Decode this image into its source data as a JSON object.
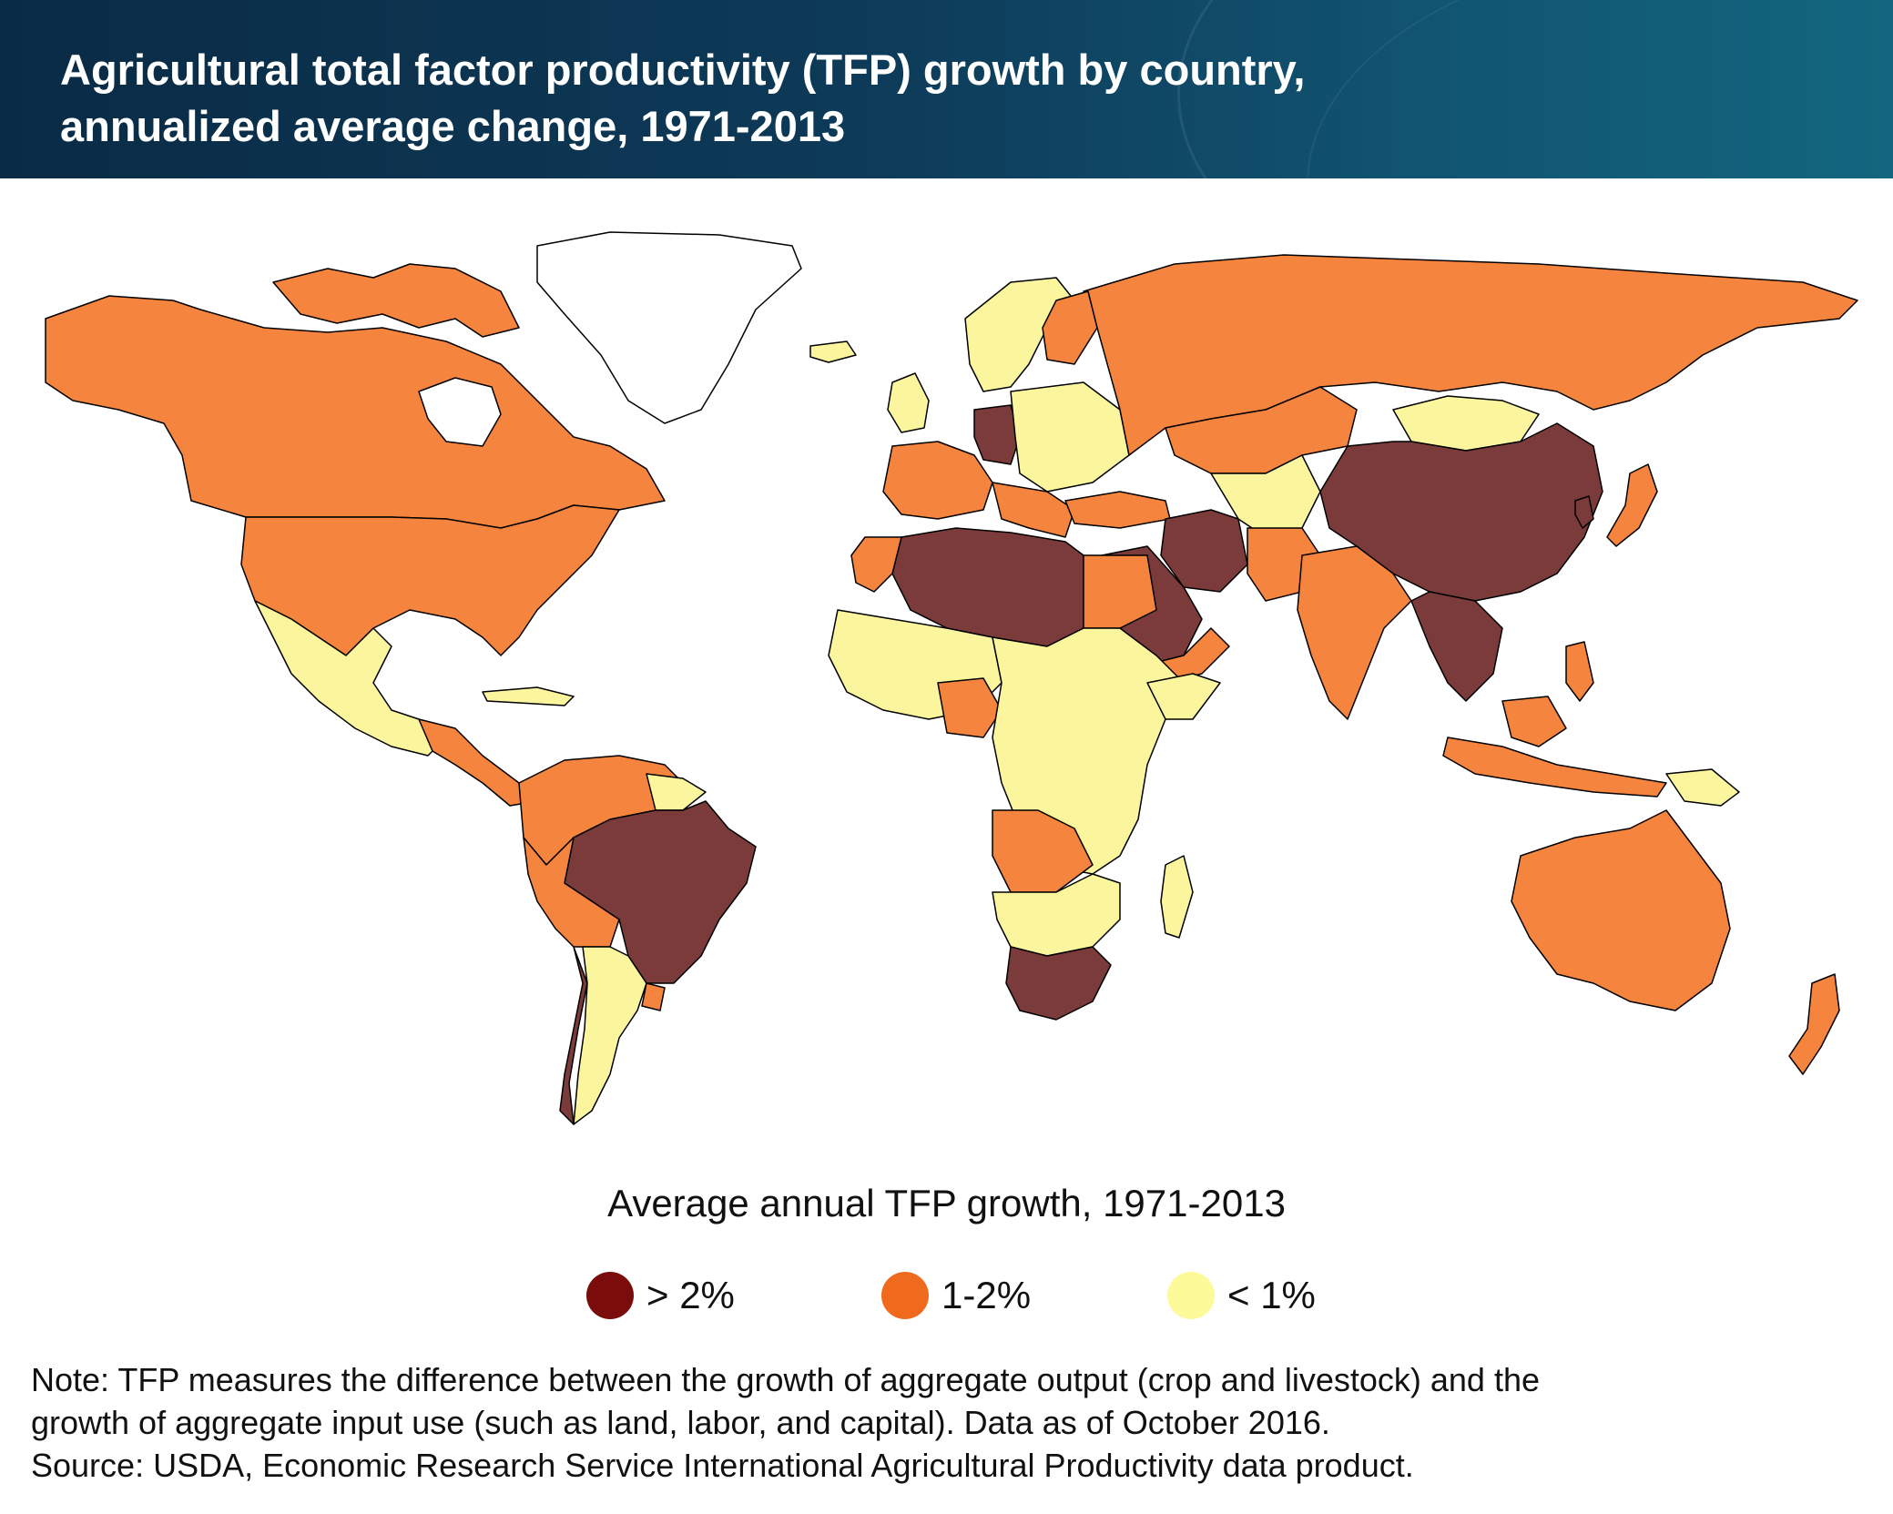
{
  "header": {
    "title_line1": "Agricultural total factor productivity (TFP) growth by country,",
    "title_line2": "annualized average change, 1971-2013"
  },
  "legend": {
    "title": "Average annual TFP growth, 1971-2013",
    "items": [
      {
        "label": "> 2%",
        "color": "#7a0c0c"
      },
      {
        "label": "1-2%",
        "color": "#f06a1e"
      },
      {
        "label": "< 1%",
        "color": "#fdfa9a"
      }
    ]
  },
  "map_colors": {
    "high": "#7b3b3b",
    "mid": "#f5843f",
    "low": "#fbf59d",
    "nodata": "#ffffff",
    "border": "#000000"
  },
  "note": {
    "line1": "Note: TFP measures the difference between the growth of aggregate output (crop and livestock) and the",
    "line2": "growth of aggregate input use (such as land, labor, and capital). Data as of October 2016.",
    "line3": "Source: USDA, Economic Research Service International Agricultural Productivity data product."
  }
}
